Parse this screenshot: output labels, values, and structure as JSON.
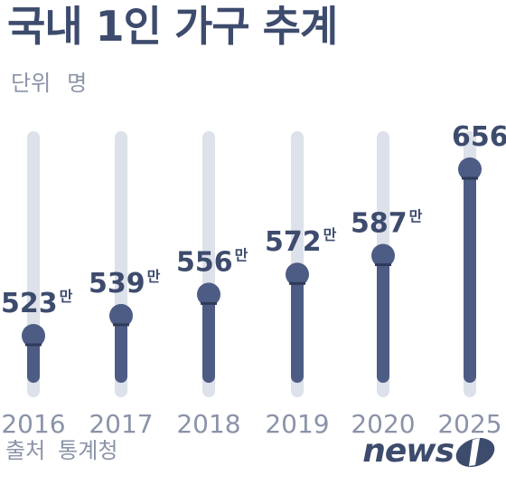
{
  "header": {
    "title": "국내 1인 가구 추계",
    "unit_label": "단위",
    "unit_value": "명"
  },
  "footer": {
    "source_label": "출처",
    "source_value": "통계청",
    "logo_text": "news1"
  },
  "colors": {
    "track": "#dde1ea",
    "bar": "#4d5c85",
    "dot": "#4d5c85",
    "text_dark": "#3d4b6d",
    "text_muted": "#8a93a8"
  },
  "chart_data": {
    "type": "bar",
    "categories": [
      "2016",
      "2017",
      "2018",
      "2019",
      "2020",
      "2025"
    ],
    "values": [
      523,
      539,
      556,
      572,
      587,
      656
    ],
    "value_suffix": "만",
    "ylabel": "",
    "xlabel": ""
  }
}
